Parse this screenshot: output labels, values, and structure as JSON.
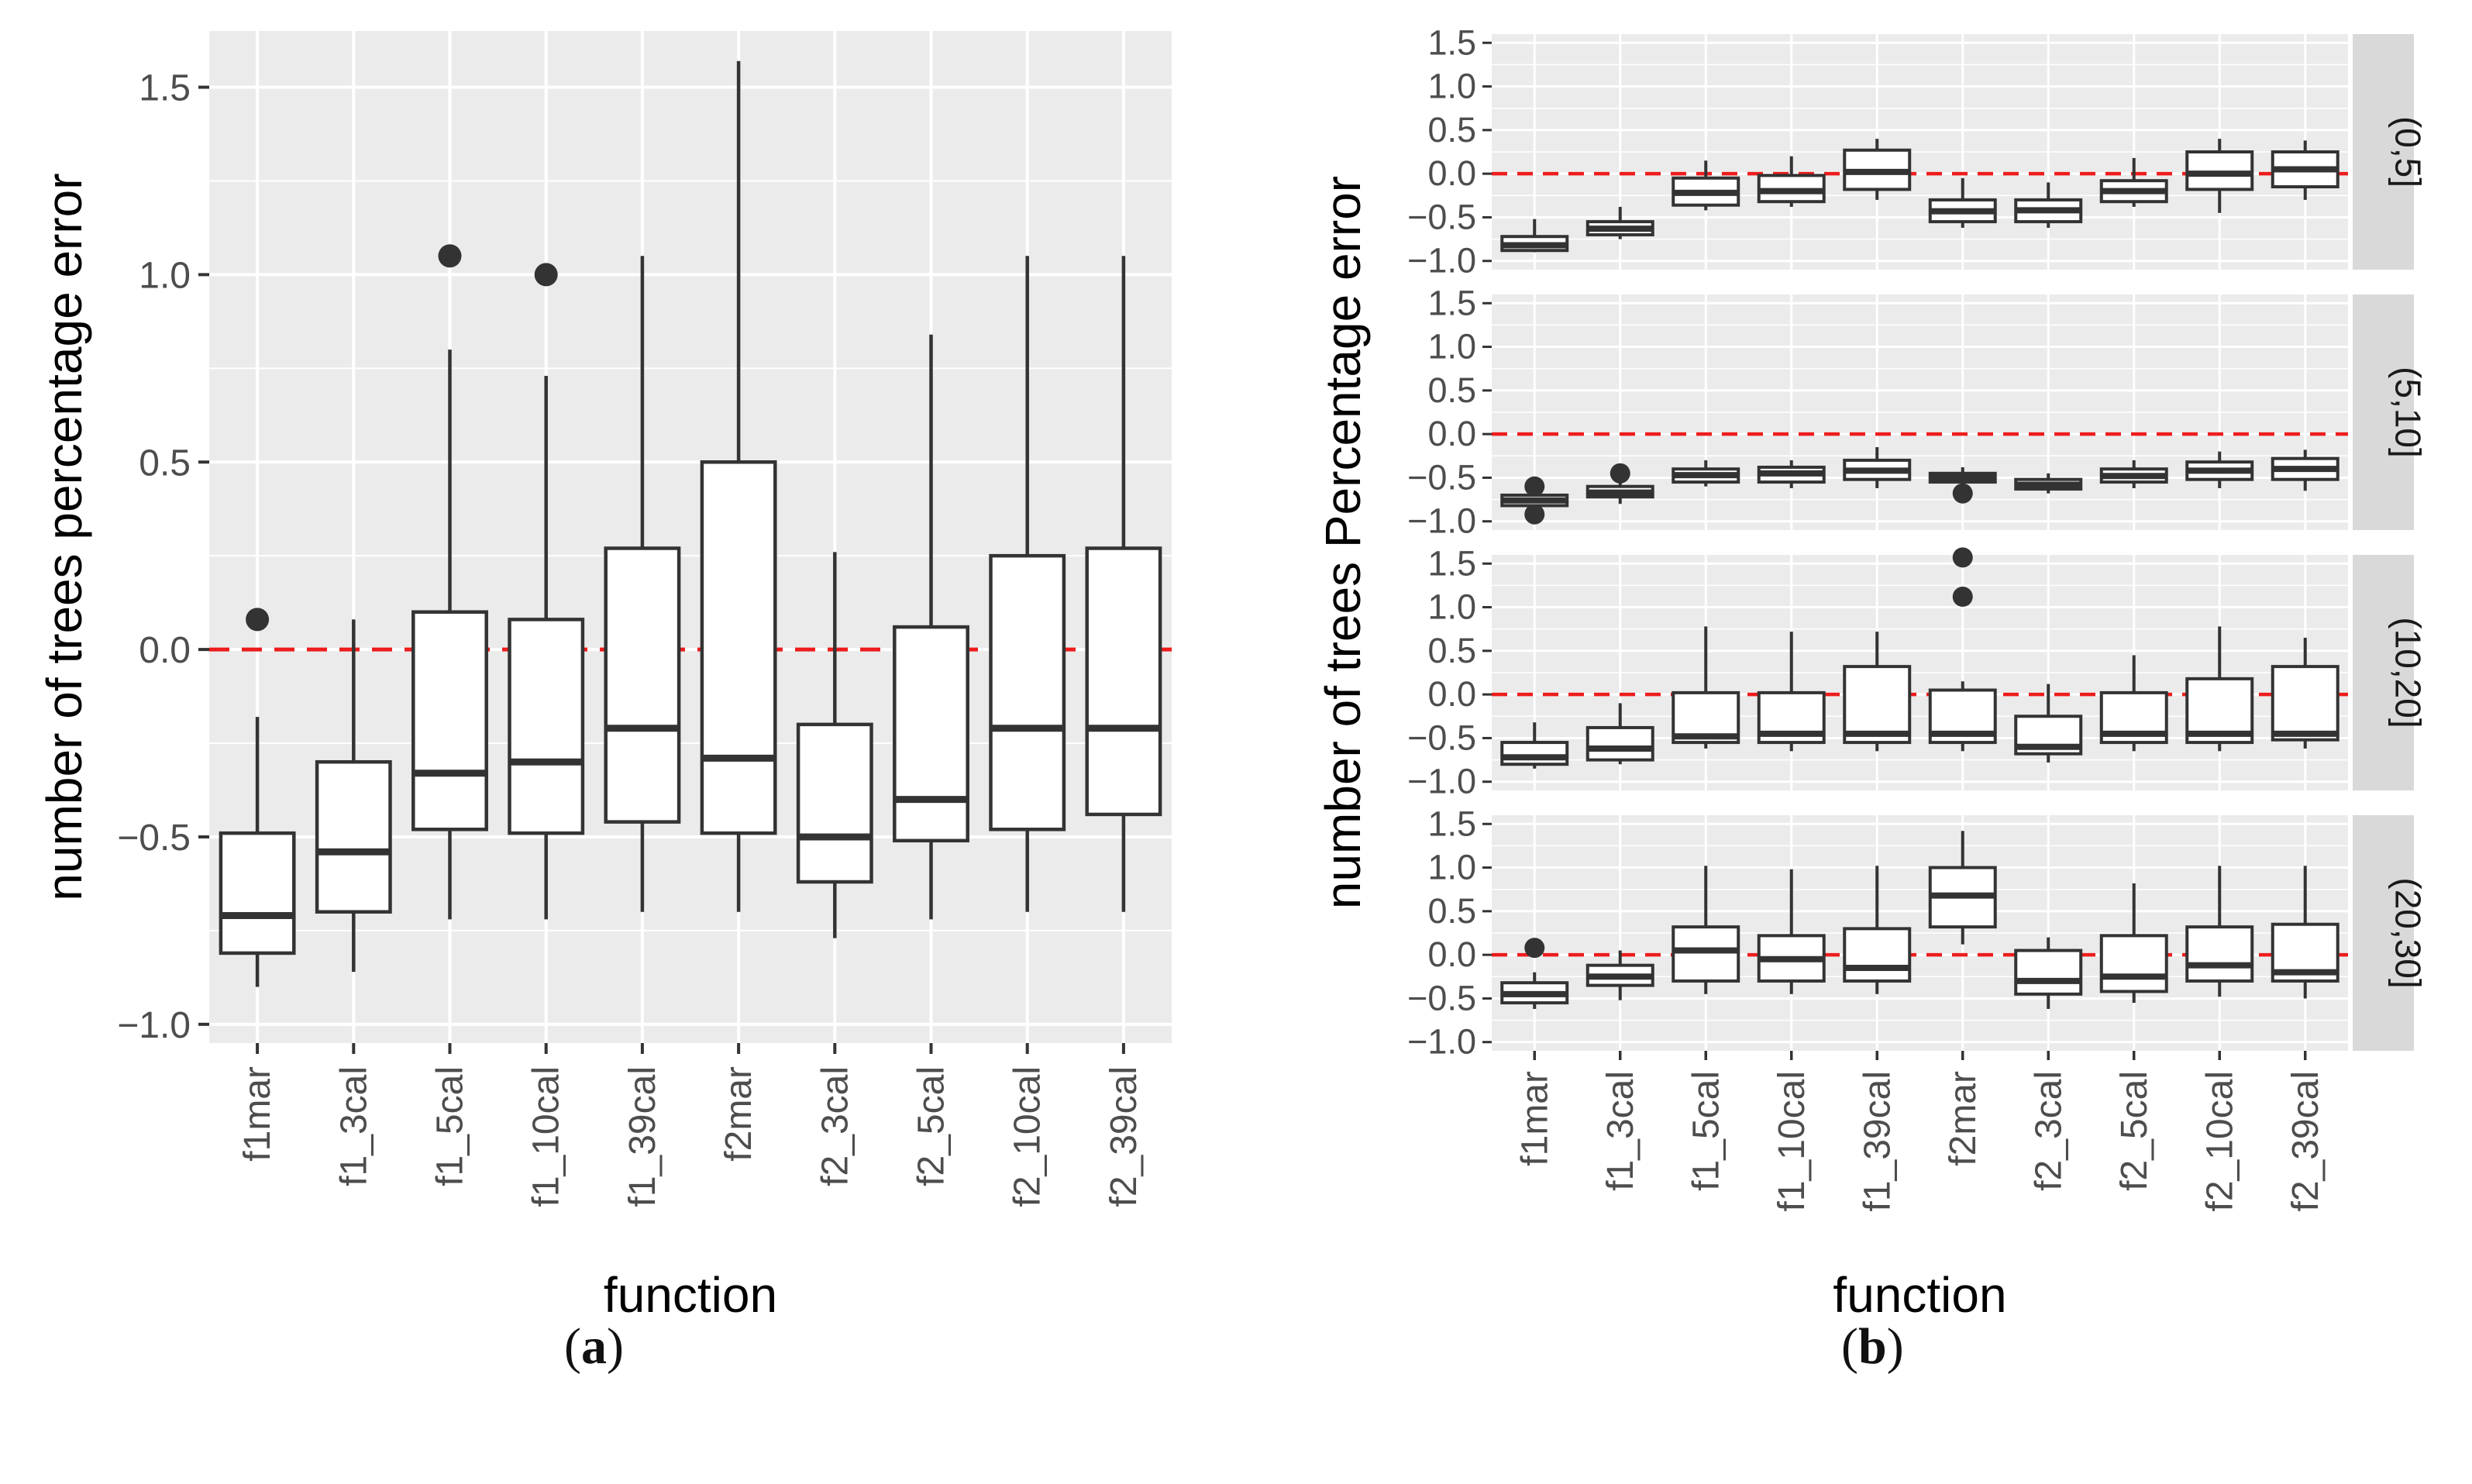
{
  "figure": {
    "panel_a_label": "a",
    "panel_b_label": "b"
  },
  "colors": {
    "panel_bg": "#ebebeb",
    "grid_major": "#ffffff",
    "strip_bg": "#d9d9d9",
    "box_line": "#333333",
    "box_fill": "#ffffff",
    "reference_line": "#ee1c1c",
    "tick_label": "#4d4d4d"
  },
  "chart_data": [
    {
      "type": "boxplot",
      "panel": "a",
      "xlabel": "function",
      "ylabel": "number of trees percentage error",
      "ylim": [
        -1.05,
        1.65
      ],
      "yticks": [
        -1.0,
        -0.5,
        0.0,
        0.5,
        1.0,
        1.5
      ],
      "ytick_labels": [
        "−1.0",
        "−0.5",
        "0.0",
        "0.5",
        "1.0",
        "1.5"
      ],
      "reference_line": 0.0,
      "categories": [
        "f1mar",
        "f1_3cal",
        "f1_5cal",
        "f1_10cal",
        "f1_39cal",
        "f2mar",
        "f2_3cal",
        "f2_5cal",
        "f2_10cal",
        "f2_39cal"
      ],
      "boxes": [
        {
          "min": -0.9,
          "q1": -0.81,
          "median": -0.71,
          "q3": -0.49,
          "max": -0.18,
          "outliers": [
            0.08
          ]
        },
        {
          "min": -0.86,
          "q1": -0.7,
          "median": -0.54,
          "q3": -0.3,
          "max": 0.08,
          "outliers": []
        },
        {
          "min": -0.72,
          "q1": -0.48,
          "median": -0.33,
          "q3": 0.1,
          "max": 0.8,
          "outliers": [
            1.05
          ]
        },
        {
          "min": -0.72,
          "q1": -0.49,
          "median": -0.3,
          "q3": 0.08,
          "max": 0.73,
          "outliers": [
            1.0
          ]
        },
        {
          "min": -0.7,
          "q1": -0.46,
          "median": -0.21,
          "q3": 0.27,
          "max": 1.05,
          "outliers": []
        },
        {
          "min": -0.7,
          "q1": -0.49,
          "median": -0.29,
          "q3": 0.5,
          "max": 1.57,
          "outliers": []
        },
        {
          "min": -0.77,
          "q1": -0.62,
          "median": -0.5,
          "q3": -0.2,
          "max": 0.26,
          "outliers": []
        },
        {
          "min": -0.72,
          "q1": -0.51,
          "median": -0.4,
          "q3": 0.06,
          "max": 0.84,
          "outliers": []
        },
        {
          "min": -0.7,
          "q1": -0.48,
          "median": -0.21,
          "q3": 0.25,
          "max": 1.05,
          "outliers": []
        },
        {
          "min": -0.7,
          "q1": -0.44,
          "median": -0.21,
          "q3": 0.27,
          "max": 1.05,
          "outliers": []
        }
      ]
    },
    {
      "type": "boxplot",
      "panel": "b",
      "xlabel": "function",
      "ylabel": "number of trees Percentage error",
      "ylim": [
        -1.1,
        1.6
      ],
      "yticks": [
        -1.0,
        -0.5,
        0.0,
        0.5,
        1.0,
        1.5
      ],
      "ytick_labels": [
        "−1.0",
        "−0.5",
        "0.0",
        "0.5",
        "1.0",
        "1.5"
      ],
      "reference_line": 0.0,
      "categories": [
        "f1mar",
        "f1_3cal",
        "f1_5cal",
        "f1_10cal",
        "f1_39cal",
        "f2mar",
        "f2_3cal",
        "f2_5cal",
        "f2_10cal",
        "f2_39cal"
      ],
      "facets": [
        {
          "strip": "(0,5]",
          "boxes": [
            {
              "min": -0.9,
              "q1": -0.88,
              "median": -0.82,
              "q3": -0.72,
              "max": -0.52,
              "outliers": []
            },
            {
              "min": -0.75,
              "q1": -0.7,
              "median": -0.63,
              "q3": -0.55,
              "max": -0.38,
              "outliers": []
            },
            {
              "min": -0.42,
              "q1": -0.36,
              "median": -0.22,
              "q3": -0.05,
              "max": 0.15,
              "outliers": []
            },
            {
              "min": -0.38,
              "q1": -0.32,
              "median": -0.2,
              "q3": -0.02,
              "max": 0.2,
              "outliers": []
            },
            {
              "min": -0.3,
              "q1": -0.18,
              "median": 0.02,
              "q3": 0.27,
              "max": 0.4,
              "outliers": []
            },
            {
              "min": -0.62,
              "q1": -0.55,
              "median": -0.43,
              "q3": -0.3,
              "max": -0.05,
              "outliers": []
            },
            {
              "min": -0.62,
              "q1": -0.55,
              "median": -0.42,
              "q3": -0.3,
              "max": -0.1,
              "outliers": []
            },
            {
              "min": -0.38,
              "q1": -0.32,
              "median": -0.2,
              "q3": -0.08,
              "max": 0.18,
              "outliers": []
            },
            {
              "min": -0.45,
              "q1": -0.18,
              "median": 0.0,
              "q3": 0.25,
              "max": 0.4,
              "outliers": []
            },
            {
              "min": -0.3,
              "q1": -0.15,
              "median": 0.05,
              "q3": 0.25,
              "max": 0.38,
              "outliers": []
            }
          ]
        },
        {
          "strip": "(5,10]",
          "boxes": [
            {
              "min": -0.9,
              "q1": -0.82,
              "median": -0.76,
              "q3": -0.7,
              "max": -0.62,
              "outliers": [
                -0.6,
                -0.92
              ]
            },
            {
              "min": -0.8,
              "q1": -0.72,
              "median": -0.67,
              "q3": -0.6,
              "max": -0.5,
              "outliers": [
                -0.45
              ]
            },
            {
              "min": -0.6,
              "q1": -0.55,
              "median": -0.47,
              "q3": -0.4,
              "max": -0.3,
              "outliers": []
            },
            {
              "min": -0.62,
              "q1": -0.55,
              "median": -0.45,
              "q3": -0.38,
              "max": -0.3,
              "outliers": []
            },
            {
              "min": -0.62,
              "q1": -0.52,
              "median": -0.42,
              "q3": -0.3,
              "max": -0.15,
              "outliers": []
            },
            {
              "min": -0.62,
              "q1": -0.55,
              "median": -0.5,
              "q3": -0.45,
              "max": -0.38,
              "outliers": [
                -0.68
              ]
            },
            {
              "min": -0.68,
              "q1": -0.63,
              "median": -0.58,
              "q3": -0.52,
              "max": -0.45,
              "outliers": []
            },
            {
              "min": -0.62,
              "q1": -0.55,
              "median": -0.48,
              "q3": -0.4,
              "max": -0.3,
              "outliers": []
            },
            {
              "min": -0.62,
              "q1": -0.52,
              "median": -0.42,
              "q3": -0.32,
              "max": -0.2,
              "outliers": []
            },
            {
              "min": -0.65,
              "q1": -0.52,
              "median": -0.4,
              "q3": -0.28,
              "max": -0.18,
              "outliers": []
            }
          ]
        },
        {
          "strip": "(10,20]",
          "boxes": [
            {
              "min": -0.85,
              "q1": -0.8,
              "median": -0.72,
              "q3": -0.55,
              "max": -0.32,
              "outliers": []
            },
            {
              "min": -0.8,
              "q1": -0.75,
              "median": -0.62,
              "q3": -0.38,
              "max": -0.1,
              "outliers": []
            },
            {
              "min": -0.62,
              "q1": -0.55,
              "median": -0.48,
              "q3": 0.02,
              "max": 0.78,
              "outliers": []
            },
            {
              "min": -0.65,
              "q1": -0.55,
              "median": -0.45,
              "q3": 0.02,
              "max": 0.72,
              "outliers": []
            },
            {
              "min": -0.65,
              "q1": -0.55,
              "median": -0.45,
              "q3": 0.32,
              "max": 0.72,
              "outliers": []
            },
            {
              "min": -0.65,
              "q1": -0.55,
              "median": -0.45,
              "q3": 0.05,
              "max": 0.15,
              "outliers": [
                1.57,
                1.12
              ]
            },
            {
              "min": -0.78,
              "q1": -0.68,
              "median": -0.6,
              "q3": -0.25,
              "max": 0.12,
              "outliers": []
            },
            {
              "min": -0.65,
              "q1": -0.55,
              "median": -0.45,
              "q3": 0.02,
              "max": 0.45,
              "outliers": []
            },
            {
              "min": -0.65,
              "q1": -0.55,
              "median": -0.45,
              "q3": 0.18,
              "max": 0.78,
              "outliers": []
            },
            {
              "min": -0.62,
              "q1": -0.52,
              "median": -0.45,
              "q3": 0.32,
              "max": 0.65,
              "outliers": []
            }
          ]
        },
        {
          "strip": "(20,30]",
          "boxes": [
            {
              "min": -0.62,
              "q1": -0.55,
              "median": -0.45,
              "q3": -0.32,
              "max": -0.2,
              "outliers": [
                0.08
              ]
            },
            {
              "min": -0.52,
              "q1": -0.35,
              "median": -0.25,
              "q3": -0.12,
              "max": 0.05,
              "outliers": []
            },
            {
              "min": -0.45,
              "q1": -0.3,
              "median": 0.05,
              "q3": 0.32,
              "max": 1.02,
              "outliers": []
            },
            {
              "min": -0.45,
              "q1": -0.3,
              "median": -0.05,
              "q3": 0.22,
              "max": 0.98,
              "outliers": []
            },
            {
              "min": -0.45,
              "q1": -0.3,
              "median": -0.15,
              "q3": 0.3,
              "max": 1.02,
              "outliers": []
            },
            {
              "min": 0.12,
              "q1": 0.32,
              "median": 0.68,
              "q3": 1.0,
              "max": 1.42,
              "outliers": []
            },
            {
              "min": -0.62,
              "q1": -0.45,
              "median": -0.3,
              "q3": 0.05,
              "max": 0.2,
              "outliers": []
            },
            {
              "min": -0.55,
              "q1": -0.42,
              "median": -0.25,
              "q3": 0.22,
              "max": 0.82,
              "outliers": []
            },
            {
              "min": -0.48,
              "q1": -0.3,
              "median": -0.12,
              "q3": 0.32,
              "max": 1.02,
              "outliers": []
            },
            {
              "min": -0.5,
              "q1": -0.3,
              "median": -0.2,
              "q3": 0.35,
              "max": 1.02,
              "outliers": []
            }
          ]
        }
      ]
    }
  ]
}
